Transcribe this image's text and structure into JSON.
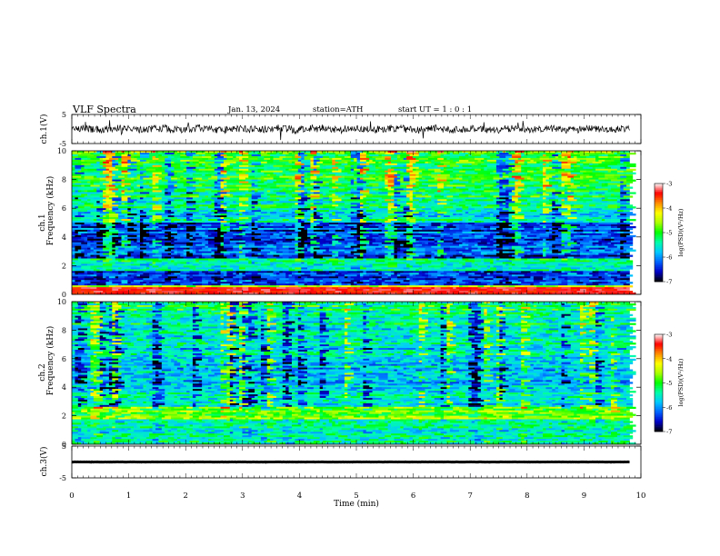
{
  "header": {
    "title": "VLF  Spectra",
    "date": "Jan. 13, 2024",
    "station": "station=ATH",
    "start_ut": "start  UT  =   1 : 0  : 1"
  },
  "chart_data": {
    "type": "heatmap",
    "xlabel": "Time  (min)",
    "xlim": [
      0,
      10
    ],
    "xticks": [
      0,
      1,
      2,
      3,
      4,
      5,
      6,
      7,
      8,
      9,
      10
    ],
    "data_end_min": 9.8,
    "panels": [
      {
        "id": "ch1-voltage",
        "type": "line",
        "ylabel": "ch.1(V)",
        "ylim": [
          -5,
          5
        ],
        "yticks": [
          -5,
          5
        ],
        "color": "#000000"
      },
      {
        "id": "ch1-spectrogram",
        "type": "heatmap",
        "ylabel_channel": "ch.1",
        "ylabel": "Frequency  (kHz)",
        "ylim": [
          0,
          10
        ],
        "yticks": [
          0,
          2,
          4,
          6,
          8,
          10
        ],
        "colorbar": {
          "label": "log(PSD)(V²/Hz)",
          "range": [
            -7,
            -3
          ],
          "ticks": [
            -3,
            -4,
            -5,
            -6,
            -7
          ]
        }
      },
      {
        "id": "ch2-spectrogram",
        "type": "heatmap",
        "ylabel_channel": "ch.2",
        "ylabel": "Frequency  (kHz)",
        "ylim": [
          0,
          10
        ],
        "yticks": [
          0,
          2,
          4,
          6,
          8,
          10
        ],
        "colorbar": {
          "label": "log(PSD)(V²/Hz)",
          "range": [
            -7,
            -3
          ],
          "ticks": [
            -3,
            -4,
            -5,
            -6,
            -7
          ]
        }
      },
      {
        "id": "ch3-voltage",
        "type": "line",
        "ylabel": "ch.3(V)",
        "ylim": [
          -5,
          5
        ],
        "yticks": [
          -5,
          5
        ],
        "color": "#000000"
      }
    ],
    "colormap": [
      "#000000",
      "#0000c8",
      "#0064ff",
      "#00c8ff",
      "#00ffaa",
      "#00ff00",
      "#aaff00",
      "#ffff00",
      "#ff8c00",
      "#ff0000",
      "#ffffff"
    ]
  }
}
